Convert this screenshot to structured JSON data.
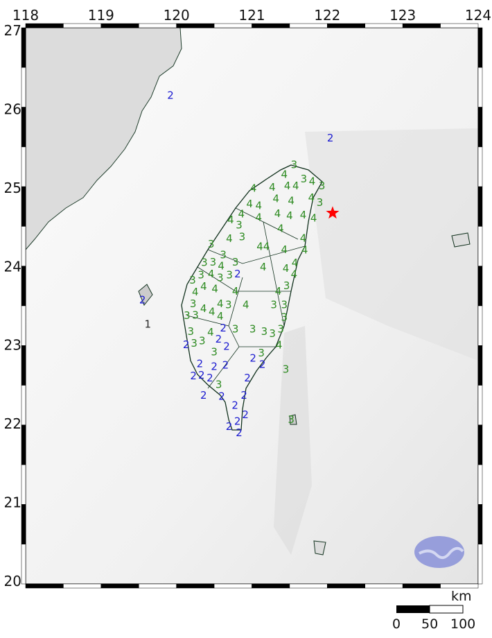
{
  "map": {
    "lon_range": [
      118,
      124
    ],
    "lat_range": [
      20,
      27
    ],
    "lon_ticks": [
      "118",
      "119",
      "120",
      "121",
      "122",
      "123",
      "124"
    ],
    "lat_ticks": [
      "27",
      "26",
      "25",
      "24",
      "23",
      "22",
      "21",
      "20"
    ],
    "epicenter": {
      "lon": 122.07,
      "lat": 24.68,
      "color": "#ff0000",
      "icon": "star-icon"
    },
    "intensity_colors": {
      "1": "#222222",
      "2": "#1a1ad0",
      "3": "#2e8b22",
      "4": "#2e8b22"
    },
    "intensities": [
      {
        "v": "3",
        "lon": 121.56,
        "lat": 25.29
      },
      {
        "v": "4",
        "lon": 121.43,
        "lat": 25.14
      },
      {
        "v": "3",
        "lon": 121.7,
        "lat": 25.11
      },
      {
        "v": "4",
        "lon": 121.47,
        "lat": 25.05
      },
      {
        "v": "4",
        "lon": 121.59,
        "lat": 25.02
      },
      {
        "v": "4",
        "lon": 121.78,
        "lat": 25.08
      },
      {
        "v": "3",
        "lon": 121.93,
        "lat": 25.02
      },
      {
        "v": "4",
        "lon": 121.02,
        "lat": 24.99
      },
      {
        "v": "4",
        "lon": 121.27,
        "lat": 24.99
      },
      {
        "v": "4",
        "lon": 121.32,
        "lat": 24.87
      },
      {
        "v": "4",
        "lon": 121.52,
        "lat": 24.83
      },
      {
        "v": "4",
        "lon": 121.8,
        "lat": 24.87
      },
      {
        "v": "3",
        "lon": 121.89,
        "lat": 24.81
      },
      {
        "v": "4",
        "lon": 120.97,
        "lat": 24.79
      },
      {
        "v": "4",
        "lon": 121.09,
        "lat": 24.74
      },
      {
        "v": "4",
        "lon": 120.84,
        "lat": 24.65
      },
      {
        "v": "4",
        "lon": 120.77,
        "lat": 24.59
      },
      {
        "v": "4",
        "lon": 121.09,
        "lat": 24.65
      },
      {
        "v": "4",
        "lon": 121.34,
        "lat": 24.67
      },
      {
        "v": "4",
        "lon": 121.5,
        "lat": 24.64
      },
      {
        "v": "4",
        "lon": 121.68,
        "lat": 24.65
      },
      {
        "v": "4",
        "lon": 121.82,
        "lat": 24.61
      },
      {
        "v": "3",
        "lon": 120.8,
        "lat": 24.52
      },
      {
        "v": "3",
        "lon": 120.87,
        "lat": 24.39
      },
      {
        "v": "4",
        "lon": 120.7,
        "lat": 24.35
      },
      {
        "v": "3",
        "lon": 120.46,
        "lat": 24.28
      },
      {
        "v": "4",
        "lon": 121.38,
        "lat": 24.48
      },
      {
        "v": "4",
        "lon": 121.68,
        "lat": 24.35
      },
      {
        "v": "4",
        "lon": 121.7,
        "lat": 24.21
      },
      {
        "v": "44",
        "lon": 121.15,
        "lat": 24.25
      },
      {
        "v": "4",
        "lon": 121.43,
        "lat": 24.21
      },
      {
        "v": "3",
        "lon": 120.62,
        "lat": 24.13
      },
      {
        "v": "3",
        "lon": 120.5,
        "lat": 24.05
      },
      {
        "v": "3",
        "lon": 120.37,
        "lat": 24.04
      },
      {
        "v": "4",
        "lon": 120.62,
        "lat": 23.99
      },
      {
        "v": "3",
        "lon": 120.78,
        "lat": 24.05
      },
      {
        "v": "4",
        "lon": 121.57,
        "lat": 24.04
      },
      {
        "v": "3",
        "lon": 120.32,
        "lat": 23.86
      },
      {
        "v": "4",
        "lon": 120.46,
        "lat": 23.91
      },
      {
        "v": "3",
        "lon": 120.58,
        "lat": 23.86
      },
      {
        "v": "3",
        "lon": 120.69,
        "lat": 23.89
      },
      {
        "v": "4",
        "lon": 121.15,
        "lat": 23.99
      },
      {
        "v": "4",
        "lon": 121.45,
        "lat": 23.97
      },
      {
        "v": "4",
        "lon": 121.56,
        "lat": 23.9
      },
      {
        "v": "2",
        "lon": 120.78,
        "lat": 23.9
      },
      {
        "v": "3",
        "lon": 120.22,
        "lat": 23.82
      },
      {
        "v": "4",
        "lon": 120.35,
        "lat": 23.77
      },
      {
        "v": "3",
        "lon": 121.43,
        "lat": 23.75
      },
      {
        "v": "4",
        "lon": 120.26,
        "lat": 23.67
      },
      {
        "v": "4",
        "lon": 120.51,
        "lat": 23.73
      },
      {
        "v": "4",
        "lon": 120.78,
        "lat": 23.68
      },
      {
        "v": "4",
        "lon": 121.38,
        "lat": 23.68
      },
      {
        "v": "3",
        "lon": 120.22,
        "lat": 23.51
      },
      {
        "v": "4",
        "lon": 120.39,
        "lat": 23.46
      },
      {
        "v": "4",
        "lon": 120.58,
        "lat": 23.52
      },
      {
        "v": "3",
        "lon": 120.69,
        "lat": 23.51
      },
      {
        "v": "4",
        "lon": 120.92,
        "lat": 23.51
      },
      {
        "v": "3",
        "lon": 121.29,
        "lat": 23.51
      },
      {
        "v": "3",
        "lon": 121.43,
        "lat": 23.51
      },
      {
        "v": "3",
        "lon": 120.14,
        "lat": 23.38
      },
      {
        "v": "3",
        "lon": 120.28,
        "lat": 23.38
      },
      {
        "v": "4",
        "lon": 120.41,
        "lat": 23.42
      },
      {
        "v": "4",
        "lon": 120.58,
        "lat": 23.33
      },
      {
        "v": "2",
        "lon": 120.62,
        "lat": 23.24
      },
      {
        "v": "3",
        "lon": 120.78,
        "lat": 23.2
      },
      {
        "v": "3",
        "lon": 121.01,
        "lat": 23.2
      },
      {
        "v": "4",
        "lon": 120.41,
        "lat": 23.16
      },
      {
        "v": "3",
        "lon": 121.18,
        "lat": 23.17
      },
      {
        "v": "3",
        "lon": 121.26,
        "lat": 23.14
      },
      {
        "v": "3",
        "lon": 121.38,
        "lat": 23.2
      },
      {
        "v": "3",
        "lon": 121.43,
        "lat": 23.35
      },
      {
        "v": "4",
        "lon": 121.36,
        "lat": 23.0
      },
      {
        "v": "3",
        "lon": 120.19,
        "lat": 23.17
      },
      {
        "v": "3",
        "lon": 120.25,
        "lat": 23.02
      },
      {
        "v": "3",
        "lon": 120.33,
        "lat": 23.05
      },
      {
        "v": "2",
        "lon": 120.56,
        "lat": 23.08
      },
      {
        "v": "2",
        "lon": 120.2,
        "lat": 23.0
      },
      {
        "v": "2",
        "lon": 120.63,
        "lat": 22.98
      },
      {
        "v": "3",
        "lon": 121.09,
        "lat": 22.89
      },
      {
        "v": "3",
        "lon": 120.5,
        "lat": 22.91
      },
      {
        "v": "2",
        "lon": 120.31,
        "lat": 22.73
      },
      {
        "v": "2",
        "lon": 120.5,
        "lat": 22.72
      },
      {
        "v": "2",
        "lon": 120.65,
        "lat": 22.74
      },
      {
        "v": "2",
        "lon": 121.05,
        "lat": 22.83
      },
      {
        "v": "2",
        "lon": 121.14,
        "lat": 22.76
      },
      {
        "v": "3",
        "lon": 121.45,
        "lat": 22.69
      },
      {
        "v": "2",
        "lon": 120.26,
        "lat": 22.63
      },
      {
        "v": "2",
        "lon": 120.32,
        "lat": 22.62
      },
      {
        "v": "2",
        "lon": 120.42,
        "lat": 22.58
      },
      {
        "v": "3",
        "lon": 120.56,
        "lat": 22.48
      },
      {
        "v": "2",
        "lon": 120.94,
        "lat": 22.58
      },
      {
        "v": "2",
        "lon": 120.36,
        "lat": 22.36
      },
      {
        "v": "2",
        "lon": 120.6,
        "lat": 22.36
      },
      {
        "v": "2",
        "lon": 120.89,
        "lat": 22.36
      },
      {
        "v": "2",
        "lon": 120.79,
        "lat": 22.23
      },
      {
        "v": "2",
        "lon": 120.88,
        "lat": 22.11
      },
      {
        "v": "2",
        "lon": 120.81,
        "lat": 22.01
      },
      {
        "v": "2",
        "lon": 120.72,
        "lat": 21.96
      },
      {
        "v": "2",
        "lon": 120.83,
        "lat": 21.9
      },
      {
        "v": "3",
        "lon": 121.52,
        "lat": 22.05
      },
      {
        "v": "2",
        "lon": 122.04,
        "lat": 25.63
      },
      {
        "v": "2",
        "lon": 119.92,
        "lat": 26.17
      },
      {
        "v": "2",
        "lon": 119.55,
        "lat": 23.57
      },
      {
        "v": "1",
        "lon": 119.62,
        "lat": 23.26
      }
    ]
  },
  "scale_bar": {
    "unit": "km",
    "labels": [
      "0",
      "50",
      "100"
    ]
  },
  "logo": {
    "color": "#8890d8"
  }
}
